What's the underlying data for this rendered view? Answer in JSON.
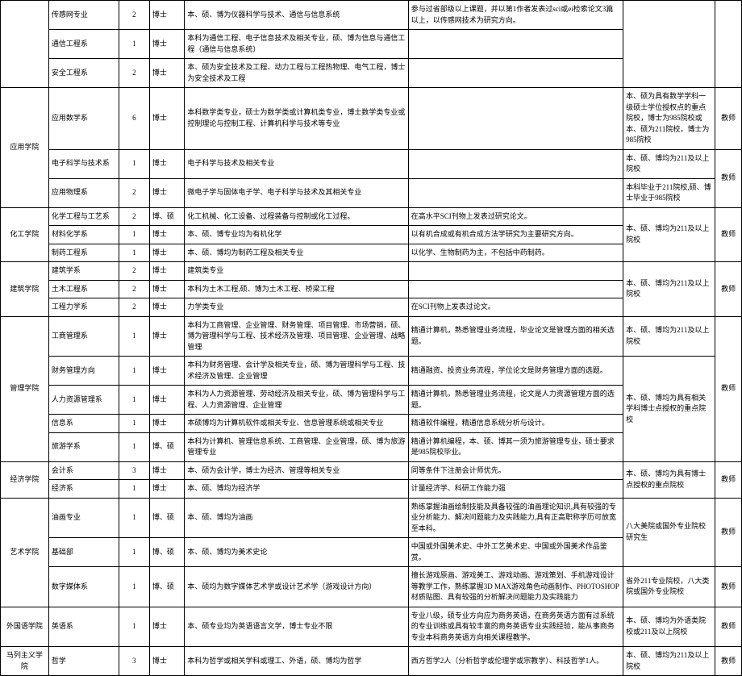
{
  "colleges": [
    {
      "name": "",
      "rows": [
        {
          "dept": "传感网专业",
          "num": "2",
          "degree": "博士",
          "major": "本、硕、博为仪器科学与技术、通信与信息系统",
          "req": "参与过省部级以上课题，并以第1作者发表过sci或ei检索论文3篇以上，以传感网技术为研究方向。",
          "note": "",
          "pos": ""
        },
        {
          "dept": "通信工程系",
          "num": "1",
          "degree": "博士",
          "major": "本科为通信工程、电子信息技术及相关专业，硕、博为信息与通信工程（通信与信息系统）",
          "req": "",
          "note": "",
          "pos": ""
        },
        {
          "dept": "安全工程系",
          "num": "2",
          "degree": "博士",
          "major": "本、硕为安全技术及工程、动力工程与工程热物理、电气工程，博士为安全技术及工程",
          "req": "",
          "note": "",
          "pos": ""
        }
      ]
    },
    {
      "name": "应用学院",
      "rows": [
        {
          "dept": "应用数学系",
          "num": "6",
          "degree": "博士",
          "major": "本科数学类专业，硕士为数学类或计算机类专业，博士数学类专业或控制理论与控制工程、计算机科学与技术等专业",
          "req": "",
          "note": "本、硕为具有数学学科一级硕士学位授权点的重点院校，博士为985院校或本、硕为211院校，博士为985院校",
          "pos": "教师"
        },
        {
          "dept": "电子科学与技术系",
          "num": "1",
          "degree": "博士",
          "major": "电子科学与技术及相关专业",
          "req": "",
          "note": "本、硕、博均为211及以上院校",
          "pos": "教师"
        },
        {
          "dept": "应用物理系",
          "num": "2",
          "degree": "博士",
          "major": "微电子学与固体电子学、电子科学与技术及其相关专业",
          "req": "",
          "note": "本科毕业于211院校,硕、博士毕业于985院校",
          "pos": ""
        }
      ]
    },
    {
      "name": "化工学院",
      "rows": [
        {
          "dept": "化学工程与工艺系",
          "num": "2",
          "degree": "博、硕",
          "major": "化工机械、化工设备、过程装备与控制或化工过程。",
          "req": "在高水平SCI刊物上发表过研究论文。",
          "note": "本、硕、博均为211及以上院校",
          "pos": "教师"
        },
        {
          "dept": "材料化学系",
          "num": "1",
          "degree": "博士",
          "major": "本、硕、博专业均为有机化学",
          "req": "以有机合成或有机合成方法学研究为主要研究方向。",
          "note": "",
          "pos": ""
        },
        {
          "dept": "制药工程系",
          "num": "1",
          "degree": "博士",
          "major": "本、硕、博均为制药工程及相关专业",
          "req": "以化学、生物制药为主，不包括中药制药。",
          "note": "",
          "pos": ""
        }
      ]
    },
    {
      "name": "建筑学院",
      "rows": [
        {
          "dept": "建筑学系",
          "num": "2",
          "degree": "博士",
          "major": "建筑类专业",
          "req": "",
          "note": "本、硕、博均为211及以上院校",
          "pos": "教师"
        },
        {
          "dept": "土木工程系",
          "num": "2",
          "degree": "博士",
          "major": "本科为土木工程,硕、博为土木工程、桥梁工程",
          "req": "",
          "note": "",
          "pos": ""
        },
        {
          "dept": "工程力学系",
          "num": "2",
          "degree": "博士",
          "major": "力学类专业",
          "req": "在SCI刊物上发表过论文。",
          "note": "",
          "pos": ""
        }
      ]
    },
    {
      "name": "管理学院",
      "rows": [
        {
          "dept": "工商管理系",
          "num": "1",
          "degree": "博士",
          "major": "本科为工商管理、企业管理、财务管理、项目管理、市场营销，硕、博为管理科学与工程、技术经济及管理、项目管理、企业管理、战略管理",
          "req": "精通计算机，熟悉管理业务流程，毕业论文是管理方面的相关选题。",
          "note": "本、硕、博均为211及以上院校",
          "pos": "教师"
        },
        {
          "dept": "财务管理方向",
          "num": "1",
          "degree": "博士",
          "major": "本科为财务管理、会计学及相关专业，硕、博为管理科学与工程、技术经济及管理、企业管理",
          "req": "精通融资、投资业务流程，学位论文是财务管理方面的选题。",
          "note": "本、硕、博均为具有相关学科博士点授权的重点院校",
          "pos": ""
        },
        {
          "dept": "人力资源管理系",
          "num": "1",
          "degree": "博士",
          "major": "本科为人力资源管理、劳动经济及相关专业，硕、博为管理科学与工程、人力资源管理、企业管理",
          "req": "精通计算机，熟悉管理业务流程，论文是人力资源管理方面的选题。",
          "note": "",
          "pos": ""
        },
        {
          "dept": "信息系",
          "num": "1",
          "degree": "博士",
          "major": "本硕博均为计算机软件或相关专业、信息管理系统或相关专业",
          "req": "精通软件编程，精通信息系统分析与设计。",
          "note": "",
          "pos": ""
        },
        {
          "dept": "旅游学系",
          "num": "1",
          "degree": "博、硕",
          "major": "本科为计算机、管理信息系统、工商管理、企业管理，硕、博为旅游管理专业",
          "req": "精通计算机编程，本、硕、博其一须为旅游管理专业，硕士要求是985院校毕业。",
          "note": "",
          "pos": ""
        }
      ]
    },
    {
      "name": "经济学院",
      "rows": [
        {
          "dept": "会计系",
          "num": "3",
          "degree": "博士",
          "major": "本、硕为会计学，博士为经济、管理等相关专业",
          "req": "同等条件下注册会计师优先。",
          "note": "本、硕、博均为具有博士点授权的重点院校",
          "pos": "教师"
        },
        {
          "dept": "经济系",
          "num": "1",
          "degree": "博士",
          "major": "本、硕、博均为经济学",
          "req": "计量经济学、科研工作能力强",
          "note": "",
          "pos": ""
        }
      ]
    },
    {
      "name": "艺术学院",
      "rows": [
        {
          "dept": "油画专业",
          "num": "1",
          "degree": "博、硕",
          "major": "本、硕、博均为油画",
          "req": "熟练掌握油画绘制技能及具备较强的油画理论知识,具有较强的专业分析能力、解决问题能力及实践能力,具有正高职称学历可放宽至本科。",
          "note": "八大美院或国外专业院校研究生",
          "pos": "教师"
        },
        {
          "dept": "基础部",
          "num": "1",
          "degree": "博、硕",
          "major": "本、硕、博均为美术史论",
          "req": "中国或外国美术史、中外工艺美术史、中国或外国美术作品鉴赏。",
          "note": "",
          "pos": ""
        },
        {
          "dept": "数字媒体系",
          "num": "1",
          "degree": "博、硕",
          "major": "本、硕均为数字媒体艺术学或设计艺术学（游戏设计方向）",
          "req": "擅长游戏原画、游戏美工、游戏动画、游戏策划、手机游戏设计等教学工作，熟练掌握3D MAX游戏角色动画制作、PHOTOSHOP材质贴图、具有较强的分析解决问题能力及实践能力",
          "note": "省外211专业院校，八大类院或国外专业院校",
          "pos": "教师"
        }
      ]
    },
    {
      "name": "外国语学院",
      "rows": [
        {
          "dept": "英语系",
          "num": "1",
          "degree": "博士",
          "major": "本、硕专业均为英语语言文学，博士专业不限",
          "req": "专业八级，硕专业方向应为商务英语，在商务英语方面有过系统的专业训练或具有较丰富的商务英语专业实践经验，能从事商务专业本科商务英语方向相关课程教学。",
          "note": "本、硕、博均为外语类院校或211及以上院校",
          "pos": "教师"
        }
      ]
    },
    {
      "name": "马列主义学院",
      "rows": [
        {
          "dept": "哲学",
          "num": "3",
          "degree": "博士",
          "major": "本科为哲学或相关学科或理工、外语，硕、博均为哲学",
          "req": "西方哲学2人（分析哲学或伦理学或宗教学）、科技哲学1人。",
          "note": "本、硕、博均为211及以上院校",
          "pos": "教师"
        }
      ]
    }
  ],
  "spans": {
    "req_top": "参与过省部级以上课题，并以第1作者发表过sci或ei检索论文3篇以上，以传感网技术为研究方向。",
    "note_hg": "本、硕、博均为211及以上院校",
    "note_jz": "本、硕、博均为211及以上院校",
    "note_gl1": "本、硕、博均为211及以上院校",
    "note_gl2": "本、硕、博均为具有相关学科博士点授权的重点院校",
    "note_jj": "本、硕、博均为具有博士点授权的重点院校",
    "note_ys1": "八大美院或国外专业院校研究生",
    "pos_t": "教师"
  }
}
